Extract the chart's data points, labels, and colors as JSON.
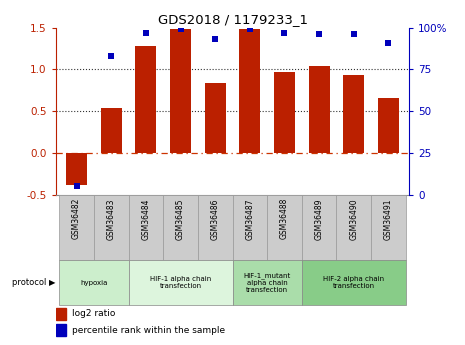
{
  "title": "GDS2018 / 1179233_1",
  "samples": [
    "GSM36482",
    "GSM36483",
    "GSM36484",
    "GSM36485",
    "GSM36486",
    "GSM36487",
    "GSM36488",
    "GSM36489",
    "GSM36490",
    "GSM36491"
  ],
  "log2_ratio": [
    -0.38,
    0.54,
    1.28,
    1.48,
    0.84,
    1.48,
    0.97,
    1.04,
    0.93,
    0.66
  ],
  "percentile_rank": [
    5,
    83,
    97,
    99,
    93,
    99,
    97,
    96,
    96,
    91
  ],
  "bar_color": "#bb2000",
  "dot_color": "#0000bb",
  "ylim_left": [
    -0.5,
    1.5
  ],
  "ylim_right": [
    0,
    100
  ],
  "yticks_left": [
    -0.5,
    0.0,
    0.5,
    1.0,
    1.5
  ],
  "yticks_right": [
    0,
    25,
    50,
    75,
    100
  ],
  "hline_0_color": "#cc3300",
  "hline_0_style": "dashdot",
  "hline_dotted_color": "#333333",
  "protocols": [
    {
      "label": "hypoxia",
      "start": 0,
      "end": 2,
      "color": "#cceecc"
    },
    {
      "label": "HIF-1 alpha chain\ntransfection",
      "start": 2,
      "end": 5,
      "color": "#ddf5dd"
    },
    {
      "label": "HIF-1_mutant\nalpha chain\ntransfection",
      "start": 5,
      "end": 7,
      "color": "#aaddaa"
    },
    {
      "label": "HIF-2 alpha chain\ntransfection",
      "start": 7,
      "end": 10,
      "color": "#88cc88"
    }
  ],
  "legend_red_label": "log2 ratio",
  "legend_blue_label": "percentile rank within the sample",
  "bar_border_color": "#888888",
  "sample_box_color": "#cccccc",
  "sample_box_border": "#999999"
}
